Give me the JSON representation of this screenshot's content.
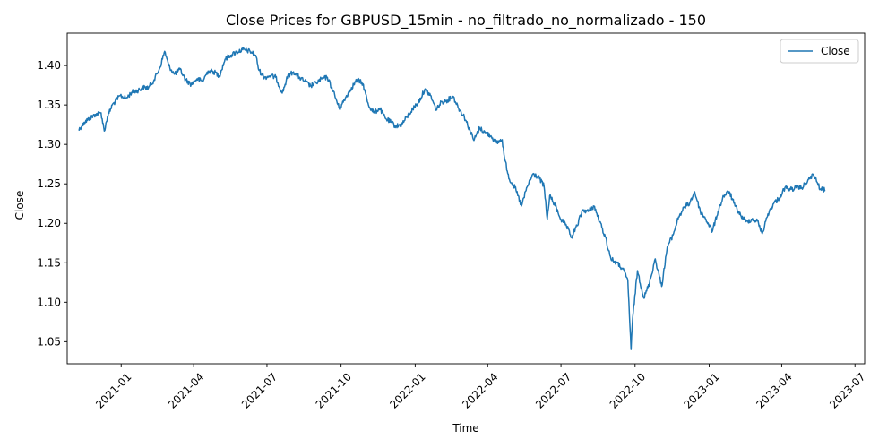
{
  "chart_data": {
    "type": "line",
    "title": "Close Prices for GBPUSD_15min - no_filtrado_no_normalizado - 150",
    "xlabel": "Time",
    "ylabel": "Close",
    "line_color": "#1f77b4",
    "legend": {
      "position": "top-right",
      "entries": [
        "Close"
      ]
    },
    "grid": false,
    "xlim": [
      "2020-10-26",
      "2023-07-13"
    ],
    "ylim": [
      1.022,
      1.441
    ],
    "x_ticks": [
      {
        "date": "2021-01-01",
        "label": "2021-01"
      },
      {
        "date": "2021-04-01",
        "label": "2021-04"
      },
      {
        "date": "2021-07-01",
        "label": "2021-07"
      },
      {
        "date": "2021-10-01",
        "label": "2021-10"
      },
      {
        "date": "2022-01-01",
        "label": "2022-01"
      },
      {
        "date": "2022-04-01",
        "label": "2022-04"
      },
      {
        "date": "2022-07-01",
        "label": "2022-07"
      },
      {
        "date": "2022-10-01",
        "label": "2022-10"
      },
      {
        "date": "2023-01-01",
        "label": "2023-01"
      },
      {
        "date": "2023-04-01",
        "label": "2023-04"
      },
      {
        "date": "2023-07-01",
        "label": "2023-07"
      }
    ],
    "y_ticks": [
      {
        "value": 1.05,
        "label": "1.05"
      },
      {
        "value": 1.1,
        "label": "1.10"
      },
      {
        "value": 1.15,
        "label": "1.15"
      },
      {
        "value": 1.2,
        "label": "1.20"
      },
      {
        "value": 1.25,
        "label": "1.25"
      },
      {
        "value": 1.3,
        "label": "1.30"
      },
      {
        "value": 1.35,
        "label": "1.35"
      },
      {
        "value": 1.4,
        "label": "1.40"
      }
    ],
    "series": [
      {
        "name": "Close",
        "points": [
          [
            "2020-11-09",
            1.318
          ],
          [
            "2020-11-16",
            1.328
          ],
          [
            "2020-11-23",
            1.333
          ],
          [
            "2020-11-30",
            1.338
          ],
          [
            "2020-12-07",
            1.34
          ],
          [
            "2020-12-11",
            1.317
          ],
          [
            "2020-12-15",
            1.335
          ],
          [
            "2020-12-21",
            1.35
          ],
          [
            "2020-12-31",
            1.362
          ],
          [
            "2021-01-07",
            1.358
          ],
          [
            "2021-01-14",
            1.366
          ],
          [
            "2021-01-21",
            1.368
          ],
          [
            "2021-01-28",
            1.372
          ],
          [
            "2021-02-04",
            1.372
          ],
          [
            "2021-02-11",
            1.382
          ],
          [
            "2021-02-18",
            1.397
          ],
          [
            "2021-02-24",
            1.418
          ],
          [
            "2021-03-01",
            1.4
          ],
          [
            "2021-03-08",
            1.389
          ],
          [
            "2021-03-15",
            1.395
          ],
          [
            "2021-03-22",
            1.382
          ],
          [
            "2021-03-29",
            1.376
          ],
          [
            "2021-04-05",
            1.383
          ],
          [
            "2021-04-12",
            1.38
          ],
          [
            "2021-04-19",
            1.393
          ],
          [
            "2021-04-26",
            1.392
          ],
          [
            "2021-05-03",
            1.387
          ],
          [
            "2021-05-10",
            1.408
          ],
          [
            "2021-05-17",
            1.413
          ],
          [
            "2021-05-24",
            1.417
          ],
          [
            "2021-06-01",
            1.42
          ],
          [
            "2021-06-10",
            1.418
          ],
          [
            "2021-06-17",
            1.413
          ],
          [
            "2021-06-21",
            1.394
          ],
          [
            "2021-06-28",
            1.385
          ],
          [
            "2021-07-05",
            1.387
          ],
          [
            "2021-07-12",
            1.385
          ],
          [
            "2021-07-20",
            1.365
          ],
          [
            "2021-07-27",
            1.387
          ],
          [
            "2021-08-03",
            1.392
          ],
          [
            "2021-08-10",
            1.385
          ],
          [
            "2021-08-17",
            1.38
          ],
          [
            "2021-08-24",
            1.374
          ],
          [
            "2021-08-31",
            1.378
          ],
          [
            "2021-09-07",
            1.383
          ],
          [
            "2021-09-14",
            1.385
          ],
          [
            "2021-09-21",
            1.368
          ],
          [
            "2021-09-29",
            1.345
          ],
          [
            "2021-10-07",
            1.36
          ],
          [
            "2021-10-14",
            1.372
          ],
          [
            "2021-10-21",
            1.382
          ],
          [
            "2021-10-28",
            1.377
          ],
          [
            "2021-11-04",
            1.35
          ],
          [
            "2021-11-11",
            1.34
          ],
          [
            "2021-11-18",
            1.346
          ],
          [
            "2021-11-25",
            1.333
          ],
          [
            "2021-12-02",
            1.328
          ],
          [
            "2021-12-08",
            1.323
          ],
          [
            "2021-12-15",
            1.325
          ],
          [
            "2021-12-22",
            1.335
          ],
          [
            "2021-12-29",
            1.345
          ],
          [
            "2022-01-05",
            1.353
          ],
          [
            "2022-01-13",
            1.37
          ],
          [
            "2022-01-20",
            1.362
          ],
          [
            "2022-01-27",
            1.344
          ],
          [
            "2022-02-03",
            1.354
          ],
          [
            "2022-02-10",
            1.356
          ],
          [
            "2022-02-17",
            1.361
          ],
          [
            "2022-02-24",
            1.346
          ],
          [
            "2022-03-03",
            1.335
          ],
          [
            "2022-03-10",
            1.318
          ],
          [
            "2022-03-15",
            1.305
          ],
          [
            "2022-03-22",
            1.321
          ],
          [
            "2022-03-29",
            1.315
          ],
          [
            "2022-04-05",
            1.311
          ],
          [
            "2022-04-12",
            1.302
          ],
          [
            "2022-04-19",
            1.306
          ],
          [
            "2022-04-22",
            1.282
          ],
          [
            "2022-04-28",
            1.256
          ],
          [
            "2022-05-05",
            1.245
          ],
          [
            "2022-05-13",
            1.222
          ],
          [
            "2022-05-20",
            1.246
          ],
          [
            "2022-05-27",
            1.262
          ],
          [
            "2022-06-03",
            1.259
          ],
          [
            "2022-06-10",
            1.247
          ],
          [
            "2022-06-14",
            1.205
          ],
          [
            "2022-06-17",
            1.235
          ],
          [
            "2022-06-24",
            1.222
          ],
          [
            "2022-07-01",
            1.205
          ],
          [
            "2022-07-08",
            1.196
          ],
          [
            "2022-07-14",
            1.182
          ],
          [
            "2022-07-21",
            1.197
          ],
          [
            "2022-07-28",
            1.217
          ],
          [
            "2022-08-04",
            1.215
          ],
          [
            "2022-08-11",
            1.222
          ],
          [
            "2022-08-18",
            1.202
          ],
          [
            "2022-08-25",
            1.183
          ],
          [
            "2022-09-01",
            1.155
          ],
          [
            "2022-09-08",
            1.15
          ],
          [
            "2022-09-15",
            1.143
          ],
          [
            "2022-09-22",
            1.128
          ],
          [
            "2022-09-26",
            1.04
          ],
          [
            "2022-09-28",
            1.08
          ],
          [
            "2022-10-04",
            1.14
          ],
          [
            "2022-10-12",
            1.105
          ],
          [
            "2022-10-19",
            1.125
          ],
          [
            "2022-10-26",
            1.155
          ],
          [
            "2022-11-03",
            1.12
          ],
          [
            "2022-11-10",
            1.17
          ],
          [
            "2022-11-17",
            1.185
          ],
          [
            "2022-11-24",
            1.208
          ],
          [
            "2022-12-01",
            1.22
          ],
          [
            "2022-12-08",
            1.226
          ],
          [
            "2022-12-14",
            1.24
          ],
          [
            "2022-12-21",
            1.215
          ],
          [
            "2022-12-28",
            1.205
          ],
          [
            "2023-01-05",
            1.19
          ],
          [
            "2023-01-12",
            1.215
          ],
          [
            "2023-01-19",
            1.235
          ],
          [
            "2023-01-26",
            1.24
          ],
          [
            "2023-02-02",
            1.222
          ],
          [
            "2023-02-09",
            1.21
          ],
          [
            "2023-02-16",
            1.202
          ],
          [
            "2023-02-23",
            1.205
          ],
          [
            "2023-03-02",
            1.203
          ],
          [
            "2023-03-08",
            1.187
          ],
          [
            "2023-03-15",
            1.212
          ],
          [
            "2023-03-22",
            1.225
          ],
          [
            "2023-03-29",
            1.232
          ],
          [
            "2023-04-05",
            1.245
          ],
          [
            "2023-04-12",
            1.243
          ],
          [
            "2023-04-19",
            1.245
          ],
          [
            "2023-04-26",
            1.245
          ],
          [
            "2023-05-03",
            1.253
          ],
          [
            "2023-05-10",
            1.262
          ],
          [
            "2023-05-15",
            1.252
          ],
          [
            "2023-05-19",
            1.243
          ],
          [
            "2023-05-25",
            1.242
          ]
        ]
      }
    ]
  }
}
